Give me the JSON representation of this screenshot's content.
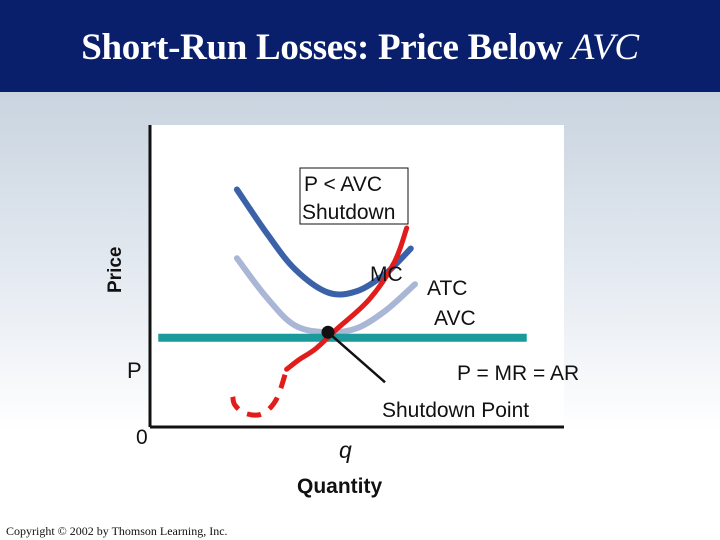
{
  "slide": {
    "title_main": "Short-Run Losses: Price Below ",
    "title_italic": "AVC",
    "copyright": "Copyright © 2002 by Thomson Learning, Inc."
  },
  "chart_data": {
    "type": "line",
    "title": "Short-Run Losses: Price Below AVC",
    "xlabel": "Quantity",
    "ylabel": "Price",
    "price_label": "P",
    "origin_label": "0",
    "quantity_label": "q",
    "annotation_box": [
      "P < AVC",
      "Shutdown"
    ],
    "shutdown_label": "Shutdown Point",
    "price_line_label": "P = MR = AR",
    "legend": "none",
    "grid": false,
    "colors": {
      "MC": "#e21b1b",
      "ATC": "#3b62a8",
      "AVC": "#a9b6d6",
      "price": "#1a9a9a",
      "axes_background": "#ffffff"
    },
    "series": [
      {
        "name": "MC",
        "style": "solid",
        "points": [
          [
            3.3,
            4.2
          ],
          [
            3.6,
            4.9
          ],
          [
            4.0,
            5.7
          ],
          [
            4.5,
            7.1
          ],
          [
            5.3,
            9.3
          ],
          [
            5.9,
            12.0
          ],
          [
            6.2,
            14.5
          ]
        ]
      },
      {
        "name": "MC",
        "style": "dashed",
        "points": [
          [
            2.0,
            2.2
          ],
          [
            2.05,
            1.6
          ],
          [
            2.3,
            1.0
          ],
          [
            2.7,
            0.95
          ],
          [
            3.05,
            2.0
          ],
          [
            3.3,
            4.2
          ]
        ]
      },
      {
        "name": "ATC",
        "points": [
          [
            2.1,
            17.3
          ],
          [
            2.8,
            14.2
          ],
          [
            3.5,
            11.5
          ],
          [
            4.3,
            9.8
          ],
          [
            5.0,
            9.9
          ],
          [
            5.7,
            11.2
          ],
          [
            6.3,
            13.0
          ]
        ]
      },
      {
        "name": "AVC",
        "points": [
          [
            2.1,
            12.3
          ],
          [
            2.8,
            9.5
          ],
          [
            3.5,
            7.4
          ],
          [
            4.3,
            6.9
          ],
          [
            5.0,
            7.2
          ],
          [
            5.7,
            8.5
          ],
          [
            6.4,
            10.4
          ]
        ]
      },
      {
        "name": "P = MR = AR",
        "points": [
          [
            0.2,
            6.5
          ],
          [
            9.1,
            6.5
          ]
        ]
      }
    ],
    "shutdown_point": [
      4.3,
      6.9
    ],
    "xlim": [
      0,
      10
    ],
    "ylim": [
      0,
      22
    ]
  }
}
